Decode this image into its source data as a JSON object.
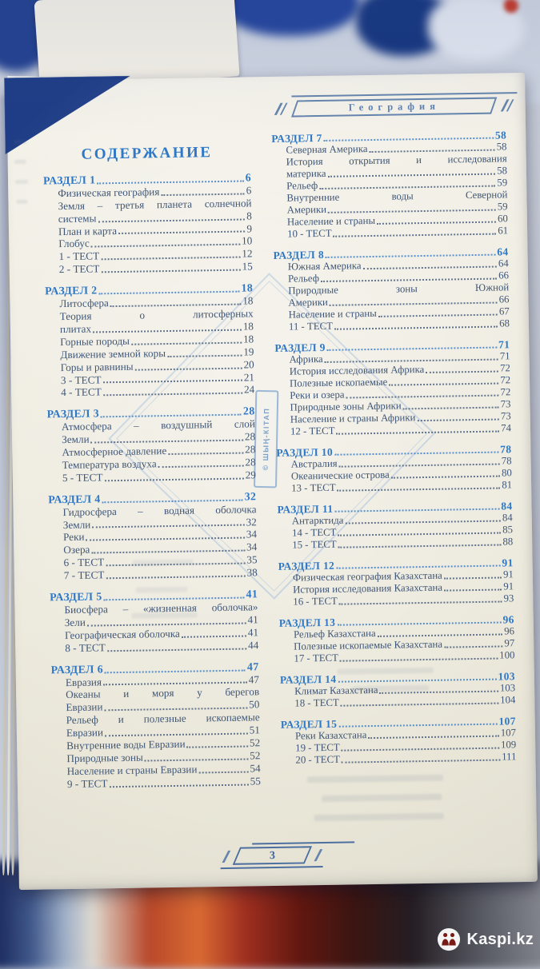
{
  "page": {
    "watermark": "© ШЫҢ-КІТАП",
    "footer_page_number": "3"
  },
  "branding": {
    "label": "Kaspi.kz"
  },
  "colors": {
    "accent_blue": "#2f78c6",
    "ink_blue_gray": "#3f5677",
    "page_paper": "#efece2",
    "watermark_blue": "#7fa0c6",
    "frame_blue": "#6585ad"
  },
  "left_column": {
    "heading": "СОДЕРЖАНИЕ",
    "sections": [
      {
        "header": {
          "text": "РАЗДЕЛ 1",
          "num": "6"
        },
        "lines": [
          {
            "text": "Физическая география",
            "num": "6"
          },
          {
            "text": "Земля – третья планета солнечной",
            "justify": true
          },
          {
            "text": "системы",
            "num": "8"
          },
          {
            "text": "План и карта",
            "num": "9"
          },
          {
            "text": "Глобус",
            "num": "10"
          },
          {
            "text": "1 - ТЕСТ",
            "num": "12"
          },
          {
            "text": "2 - ТЕСТ",
            "num": "15"
          }
        ]
      },
      {
        "header": {
          "text": "РАЗДЕЛ 2",
          "num": "18"
        },
        "lines": [
          {
            "text": "Литосфера",
            "num": "18"
          },
          {
            "text": "Теория о литосферных",
            "justify": true
          },
          {
            "text": "плитах",
            "num": "18"
          },
          {
            "text": "Горные породы",
            "num": "18"
          },
          {
            "text": "Движение земной коры",
            "num": "19"
          },
          {
            "text": "Горы и равнины",
            "num": "20"
          },
          {
            "text": "3 - ТЕСТ",
            "num": "21"
          },
          {
            "text": "4 - ТЕСТ",
            "num": "24"
          }
        ]
      },
      {
        "header": {
          "text": "РАЗДЕЛ 3",
          "num": "28"
        },
        "lines": [
          {
            "text": "Атмосфера – воздушный слой",
            "justify": true
          },
          {
            "text": "Земли",
            "num": "28"
          },
          {
            "text": "Атмосферное давление",
            "num": "28"
          },
          {
            "text": "Температура воздуха",
            "num": "28"
          },
          {
            "text": "5 - ТЕСТ",
            "num": "29"
          }
        ]
      },
      {
        "header": {
          "text": "РАЗДЕЛ 4",
          "num": "32"
        },
        "lines": [
          {
            "text": "Гидросфера – водная оболочка",
            "justify": true
          },
          {
            "text": "Земли",
            "num": "32"
          },
          {
            "text": "Реки",
            "num": "34"
          },
          {
            "text": "Озера",
            "num": "34"
          },
          {
            "text": "6 - ТЕСТ",
            "num": "35"
          },
          {
            "text": "7 - ТЕСТ",
            "num": "38"
          }
        ]
      },
      {
        "header": {
          "text": "РАЗДЕЛ 5",
          "num": "41"
        },
        "lines": [
          {
            "text": "Биосфера – «жизненная оболочка»",
            "justify": true
          },
          {
            "text": "Зели",
            "num": "41"
          },
          {
            "text": "Географическая оболочка",
            "num": "41"
          },
          {
            "text": "8 - ТЕСТ",
            "num": "44"
          }
        ]
      },
      {
        "header": {
          "text": "РАЗДЕЛ 6",
          "num": "47"
        },
        "lines": [
          {
            "text": "Евразия",
            "num": "47"
          },
          {
            "text": "Океаны и моря у берегов",
            "justify": true
          },
          {
            "text": "Евразии",
            "num": "50"
          },
          {
            "text": "Рельеф и полезные ископаемые",
            "justify": true
          },
          {
            "text": "Евразии",
            "num": "51"
          },
          {
            "text": "Внутренние воды Евразии",
            "num": "52"
          },
          {
            "text": "Природные зоны",
            "num": "52"
          },
          {
            "text": "Население и страны Евразии",
            "num": "54"
          },
          {
            "text": "9 - ТЕСТ",
            "num": "55"
          }
        ]
      }
    ]
  },
  "right_column": {
    "header": "География",
    "sections": [
      {
        "header": {
          "text": "РАЗДЕЛ 7",
          "num": "58"
        },
        "lines": [
          {
            "text": "Северная Америка",
            "num": "58"
          },
          {
            "text": "История открытия и исследования",
            "justify": true
          },
          {
            "text": "материка",
            "num": "58"
          },
          {
            "text": "Рельеф",
            "num": "59"
          },
          {
            "text": "Внутренние воды Северной",
            "justify": true
          },
          {
            "text": "Америки",
            "num": "59"
          },
          {
            "text": "Население и страны",
            "num": "60"
          },
          {
            "text": "10 - ТЕСТ",
            "num": "61"
          }
        ]
      },
      {
        "header": {
          "text": "РАЗДЕЛ 8",
          "num": "64"
        },
        "lines": [
          {
            "text": "Южная Америка",
            "num": "64"
          },
          {
            "text": "Рельеф",
            "num": "66"
          },
          {
            "text": "Природные зоны Южной",
            "justify": true
          },
          {
            "text": "Америки",
            "num": "66"
          },
          {
            "text": "Население и страны",
            "num": "67"
          },
          {
            "text": "11 - ТЕСТ",
            "num": "68"
          }
        ]
      },
      {
        "header": {
          "text": "РАЗДЕЛ 9",
          "num": "71"
        },
        "lines": [
          {
            "text": "Африка",
            "num": "71"
          },
          {
            "text": "История исследования Африка",
            "num": "72"
          },
          {
            "text": "Полезные ископаемые",
            "num": "72"
          },
          {
            "text": "Реки и озера",
            "num": "72"
          },
          {
            "text": "Природные зоны Африки",
            "num": "73"
          },
          {
            "text": "Население и страны Африки",
            "num": "73"
          },
          {
            "text": "12 - ТЕСТ",
            "num": "74"
          }
        ]
      },
      {
        "header": {
          "text": "РАЗДЕЛ 10",
          "num": "78"
        },
        "lines": [
          {
            "text": "Австралия",
            "num": "78"
          },
          {
            "text": "Океанические острова",
            "num": "80"
          },
          {
            "text": "13 - ТЕСТ",
            "num": "81"
          }
        ]
      },
      {
        "header": {
          "text": "РАЗДЕЛ 11",
          "num": "84"
        },
        "lines": [
          {
            "text": "Антарктида",
            "num": "84"
          },
          {
            "text": "14 - ТЕСТ",
            "num": "85"
          },
          {
            "text": "15 - ТЕСТ",
            "num": "88"
          }
        ]
      },
      {
        "header": {
          "text": "РАЗДЕЛ 12",
          "num": "91"
        },
        "lines": [
          {
            "text": "Физическая география Казахстана",
            "num": "91"
          },
          {
            "text": "История исследования Казахстана",
            "num": "91"
          },
          {
            "text": "16 - ТЕСТ",
            "num": "93"
          }
        ]
      },
      {
        "header": {
          "text": "РАЗДЕЛ 13",
          "num": "96"
        },
        "lines": [
          {
            "text": "Рельеф Казахстана",
            "num": "96"
          },
          {
            "text": "Полезные ископаемые Казахстана",
            "num": "97"
          },
          {
            "text": "17 - ТЕСТ",
            "num": "100"
          }
        ]
      },
      {
        "header": {
          "text": "РАЗДЕЛ 14",
          "num": "103"
        },
        "lines": [
          {
            "text": "Климат Казахстана",
            "num": "103"
          },
          {
            "text": "18 - ТЕСТ",
            "num": "104"
          }
        ]
      },
      {
        "header": {
          "text": "РАЗДЕЛ 15",
          "num": "107"
        },
        "lines": [
          {
            "text": "Реки Казахстана",
            "num": "107"
          },
          {
            "text": "19 - ТЕСТ",
            "num": "109"
          },
          {
            "text": "20 - ТЕСТ",
            "num": "111"
          }
        ]
      }
    ]
  }
}
